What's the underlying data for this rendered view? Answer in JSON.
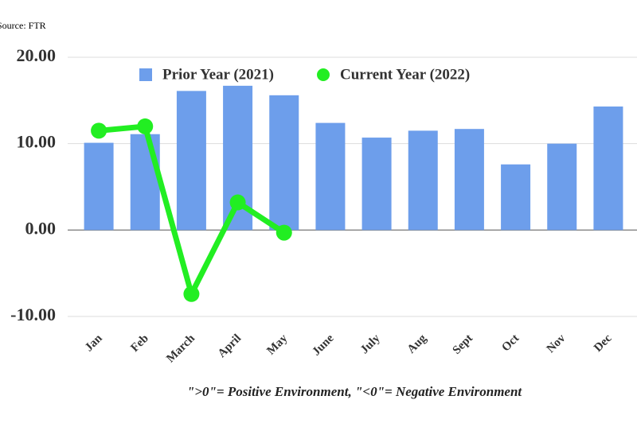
{
  "chart_data": {
    "type": "combo",
    "source": "Source: FTR",
    "footnote": "\">0\"= Positive Environment, \"<0\"= Negative Environment",
    "categories": [
      "Jan",
      "Feb",
      "March",
      "April",
      "May",
      "June",
      "July",
      "Aug",
      "Sept",
      "Oct",
      "Nov",
      "Dec"
    ],
    "series": [
      {
        "name": "Prior Year (2021)",
        "type": "bar",
        "color": "#6d9eeb",
        "values": [
          10.1,
          11.1,
          16.1,
          16.7,
          15.6,
          12.4,
          10.7,
          11.5,
          11.7,
          7.6,
          10.0,
          14.3
        ]
      },
      {
        "name": "Current Year (2022)",
        "type": "line",
        "color": "#22ee22",
        "values": [
          11.5,
          12.0,
          -7.4,
          3.2,
          -0.3,
          null,
          null,
          null,
          null,
          null,
          null,
          null
        ]
      }
    ],
    "ylim": [
      -10,
      20
    ],
    "yticks": [
      {
        "value": -10,
        "label": "-10.00"
      },
      {
        "value": 0,
        "label": "0.00"
      },
      {
        "value": 10,
        "label": "10.00"
      },
      {
        "value": 20,
        "label": "20.00"
      }
    ],
    "grid": true,
    "legend": "top"
  }
}
